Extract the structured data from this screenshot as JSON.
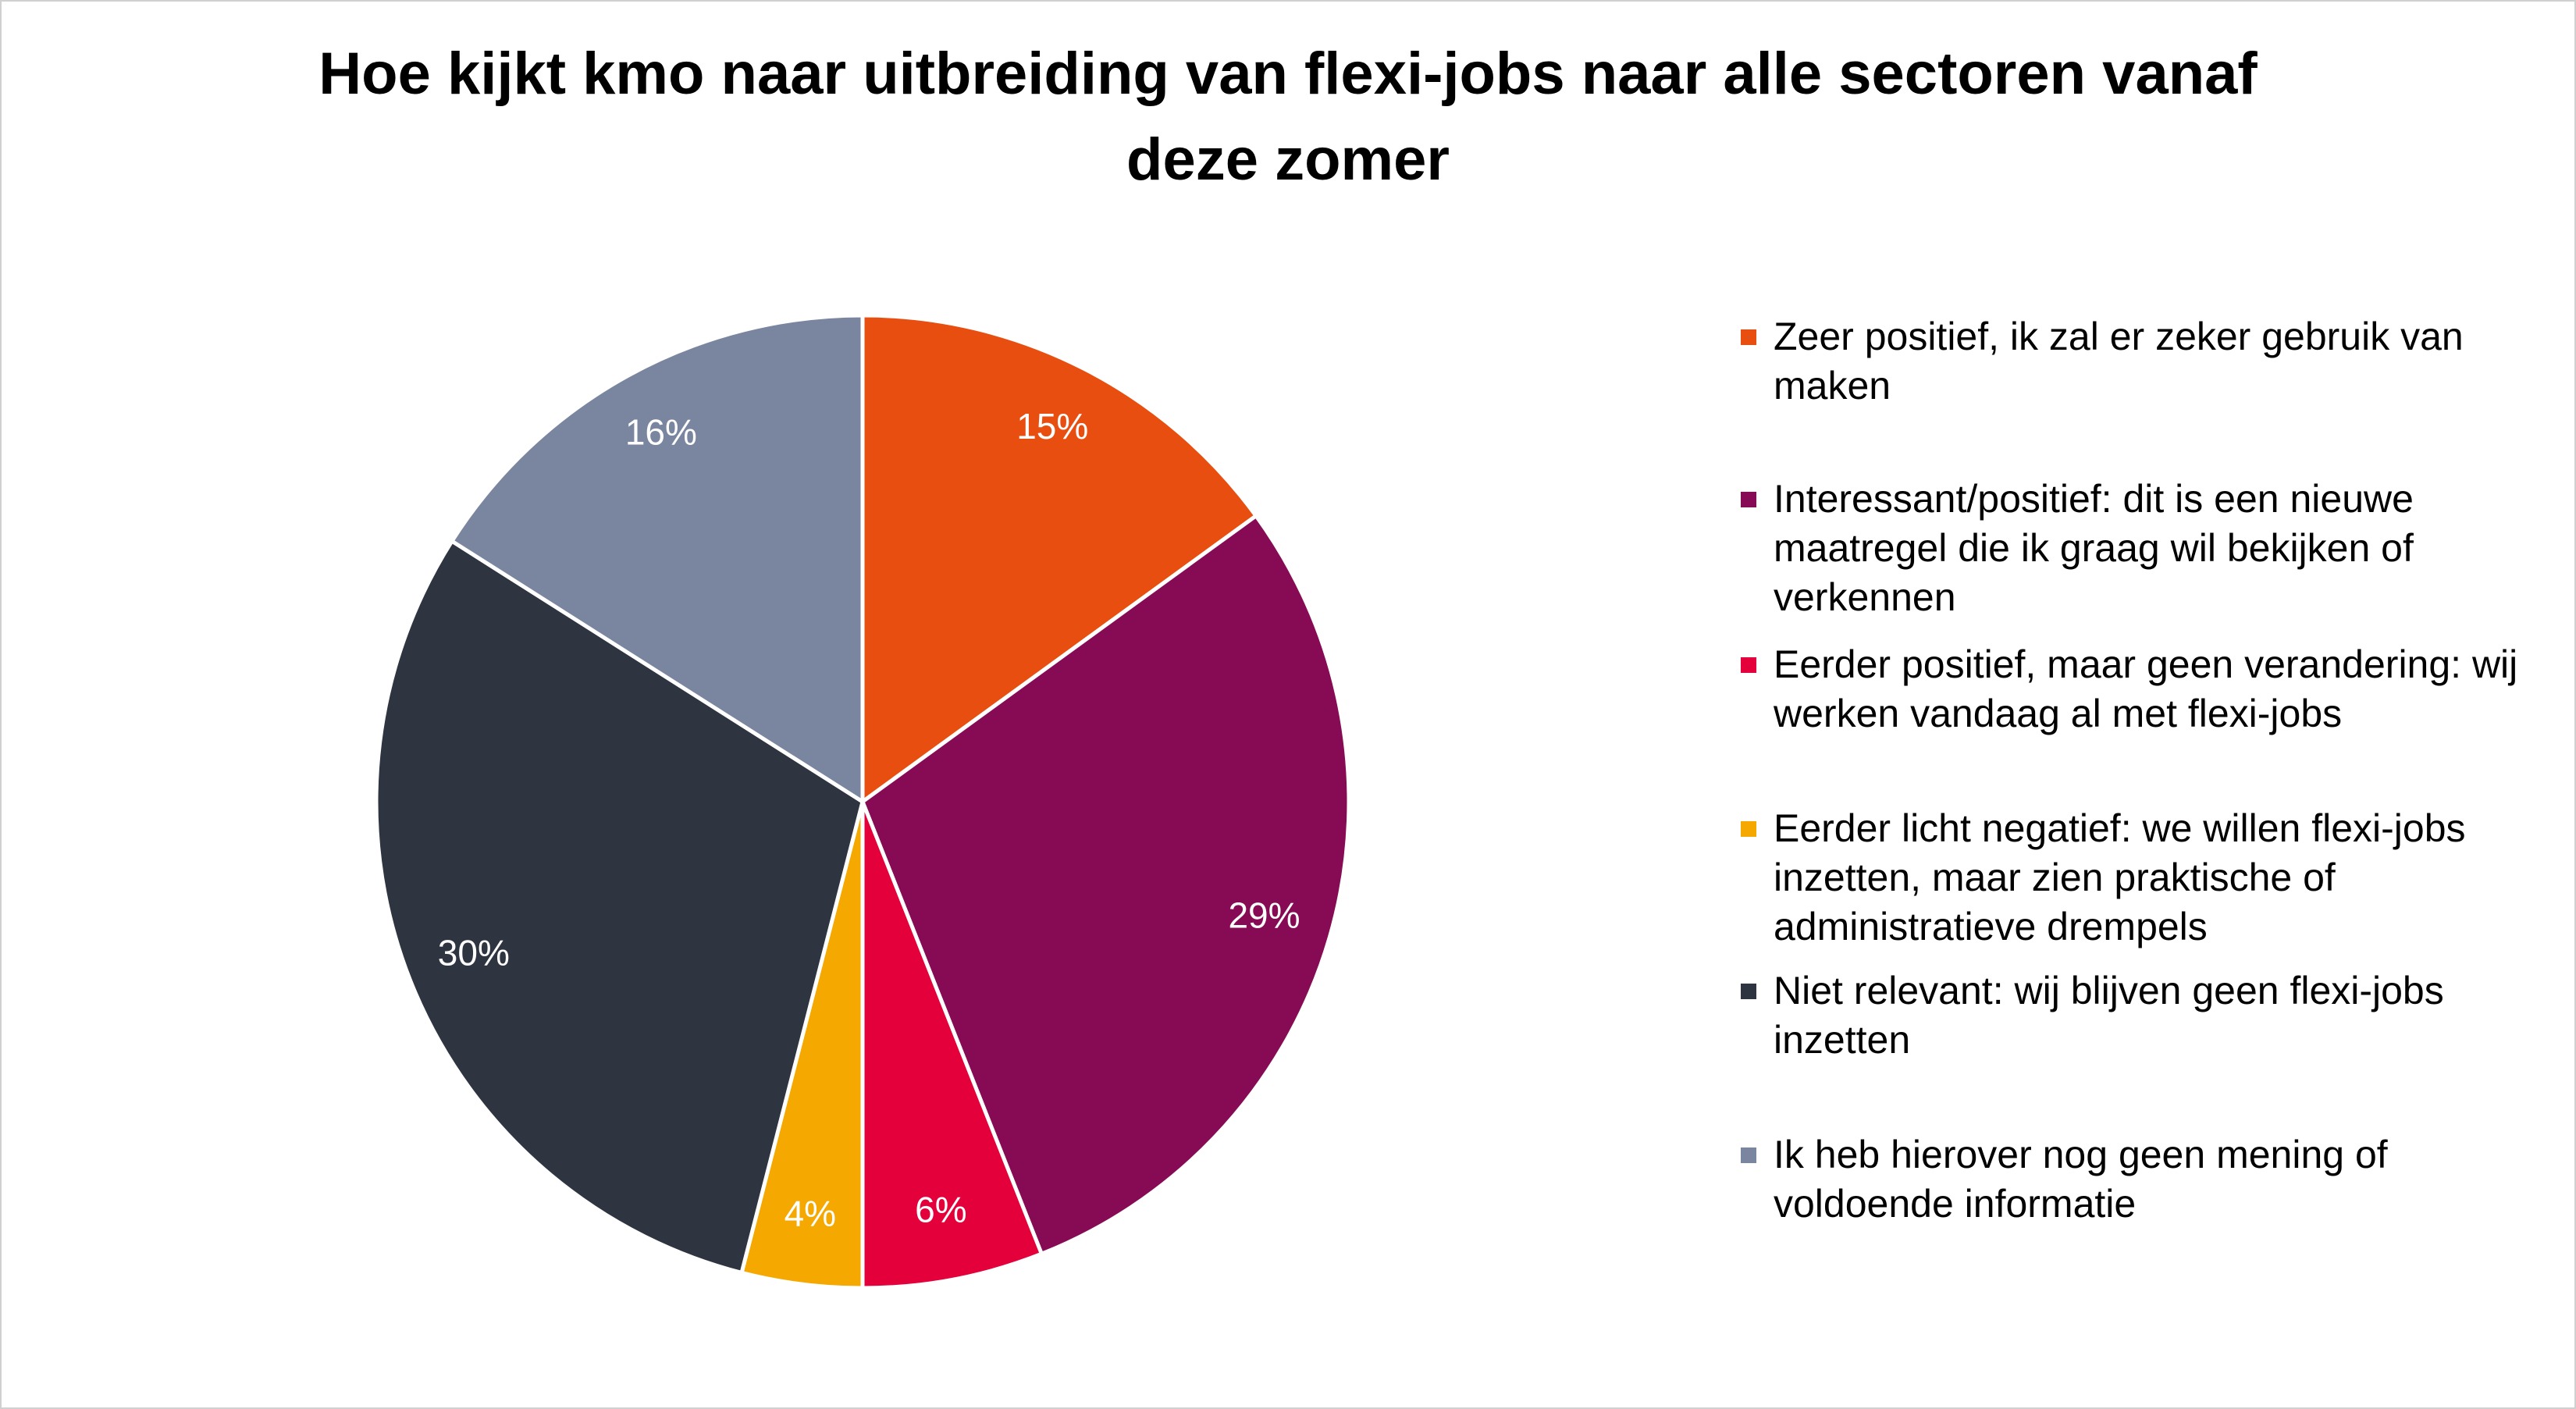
{
  "chart_data": {
    "type": "pie",
    "title": "Hoe kijkt kmo naar uitbreiding van flexi-jobs naar alle sectoren vanaf deze zomer",
    "legend": "right",
    "series": [
      {
        "name": "Zeer positief, ik zal er zeker gebruik van maken",
        "color": "#e84e0f",
        "values": [
          15
        ]
      },
      {
        "name": "Interessant/positief: dit is een nieuwe maatregel die ik graag wil bekijken of verkennen",
        "color": "#870a55",
        "values": [
          29
        ]
      },
      {
        "name": "Eerder positief, maar geen verandering: wij werken vandaag al met flexi-jobs",
        "color": "#e4003a",
        "values": [
          6
        ]
      },
      {
        "name": "Eerder licht negatief: we willen flexi-jobs inzetten, maar zien praktische of administratieve drempels",
        "color": "#f5a800",
        "values": [
          4
        ]
      },
      {
        "name": "Niet relevant: wij blijven geen flexi-jobs inzetten",
        "color": "#2e3440",
        "values": [
          30
        ]
      },
      {
        "name": "Ik heb hierover nog geen mening of voldoende informatie",
        "color": "#7a869f",
        "values": [
          16
        ]
      }
    ],
    "value_labels": [
      "15%",
      "29%",
      "6%",
      "4%",
      "30%",
      "16%"
    ]
  }
}
